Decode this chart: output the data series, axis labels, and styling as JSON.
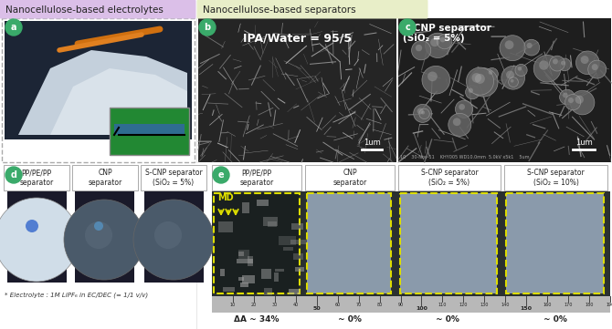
{
  "fig_width": 6.7,
  "fig_height": 3.61,
  "bg_color": "#ffffff",
  "panel_a": {
    "label": "a",
    "section_title": "Nanocellulose-based electrolytes",
    "section_bg": "#dbbfe8",
    "label_bg": "#3dab6e",
    "border_color": "#aaaaaa"
  },
  "panel_b": {
    "label": "b",
    "section_title": "Nanocellulose-based separators",
    "section_bg": "#e8eec8",
    "label_bg": "#3dab6e",
    "text_overlay": "IPA/Water = 95/5",
    "scale_bar": "1um"
  },
  "panel_c": {
    "label": "c",
    "label_bg": "#3dab6e",
    "text_overlay1": "S-CNP separator",
    "text_overlay2": "(SiO₂ = 5%)",
    "scale_bar": "1um"
  },
  "panel_d": {
    "label": "d",
    "label_bg": "#3dab6e",
    "col_labels": [
      "PP/PE/PP\nseparator",
      "CNP\nseparator",
      "S-CNP separator\n(SiO₂ = 5%)"
    ],
    "footnote": "* Electrolyte : 1M LiPF₆ in EC/DEC (= 1/1 v/v)"
  },
  "panel_e": {
    "label": "e",
    "label_bg": "#3dab6e",
    "col_labels": [
      "PP/PE/PP\nseparator",
      "CNP\nseparator",
      "S-CNP separator\n(SiO₂ = 5%)",
      "S-CNP separator\n(SiO₂ = 10%)"
    ],
    "border_color": "#dddd00",
    "pct_labels": [
      "ΔA ~ 34%",
      "~ 0%",
      "~ 0%",
      "~ 0%"
    ],
    "md_label": "MD"
  },
  "colors": {
    "green_circle": "#3aaa6a",
    "white": "#ffffff",
    "dark_gray": "#333333",
    "yellow": "#dddd00",
    "light_gray": "#cccccc"
  }
}
